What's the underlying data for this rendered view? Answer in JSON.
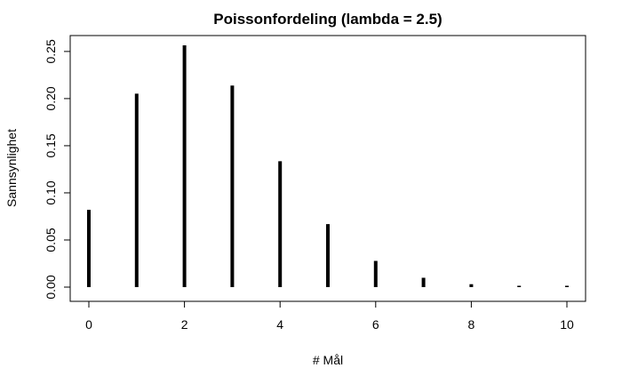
{
  "chart_data": {
    "type": "bar",
    "title": "Poissonfordeling (lambda = 2.5)",
    "xlabel": "# Mål",
    "ylabel": "Sannsynlighet",
    "x": [
      0,
      1,
      2,
      3,
      4,
      5,
      6,
      7,
      8,
      9,
      10
    ],
    "values": [
      0.0821,
      0.2052,
      0.2565,
      0.2138,
      0.1336,
      0.0668,
      0.0278,
      0.0099,
      0.0031,
      0.0009,
      0.0002
    ],
    "xlim": [
      0,
      10
    ],
    "ylim": [
      0,
      0.2565
    ],
    "x_ticks": [
      0,
      2,
      4,
      6,
      8,
      10
    ],
    "x_tick_labels": [
      "0",
      "2",
      "4",
      "6",
      "8",
      "10"
    ],
    "y_ticks": [
      0,
      0.05,
      0.1,
      0.15,
      0.2,
      0.25
    ],
    "y_tick_labels": [
      "0.00",
      "0.05",
      "0.10",
      "0.15",
      "0.20",
      "0.25"
    ],
    "grid": false,
    "legend": "none",
    "bar_color": "#000000"
  }
}
